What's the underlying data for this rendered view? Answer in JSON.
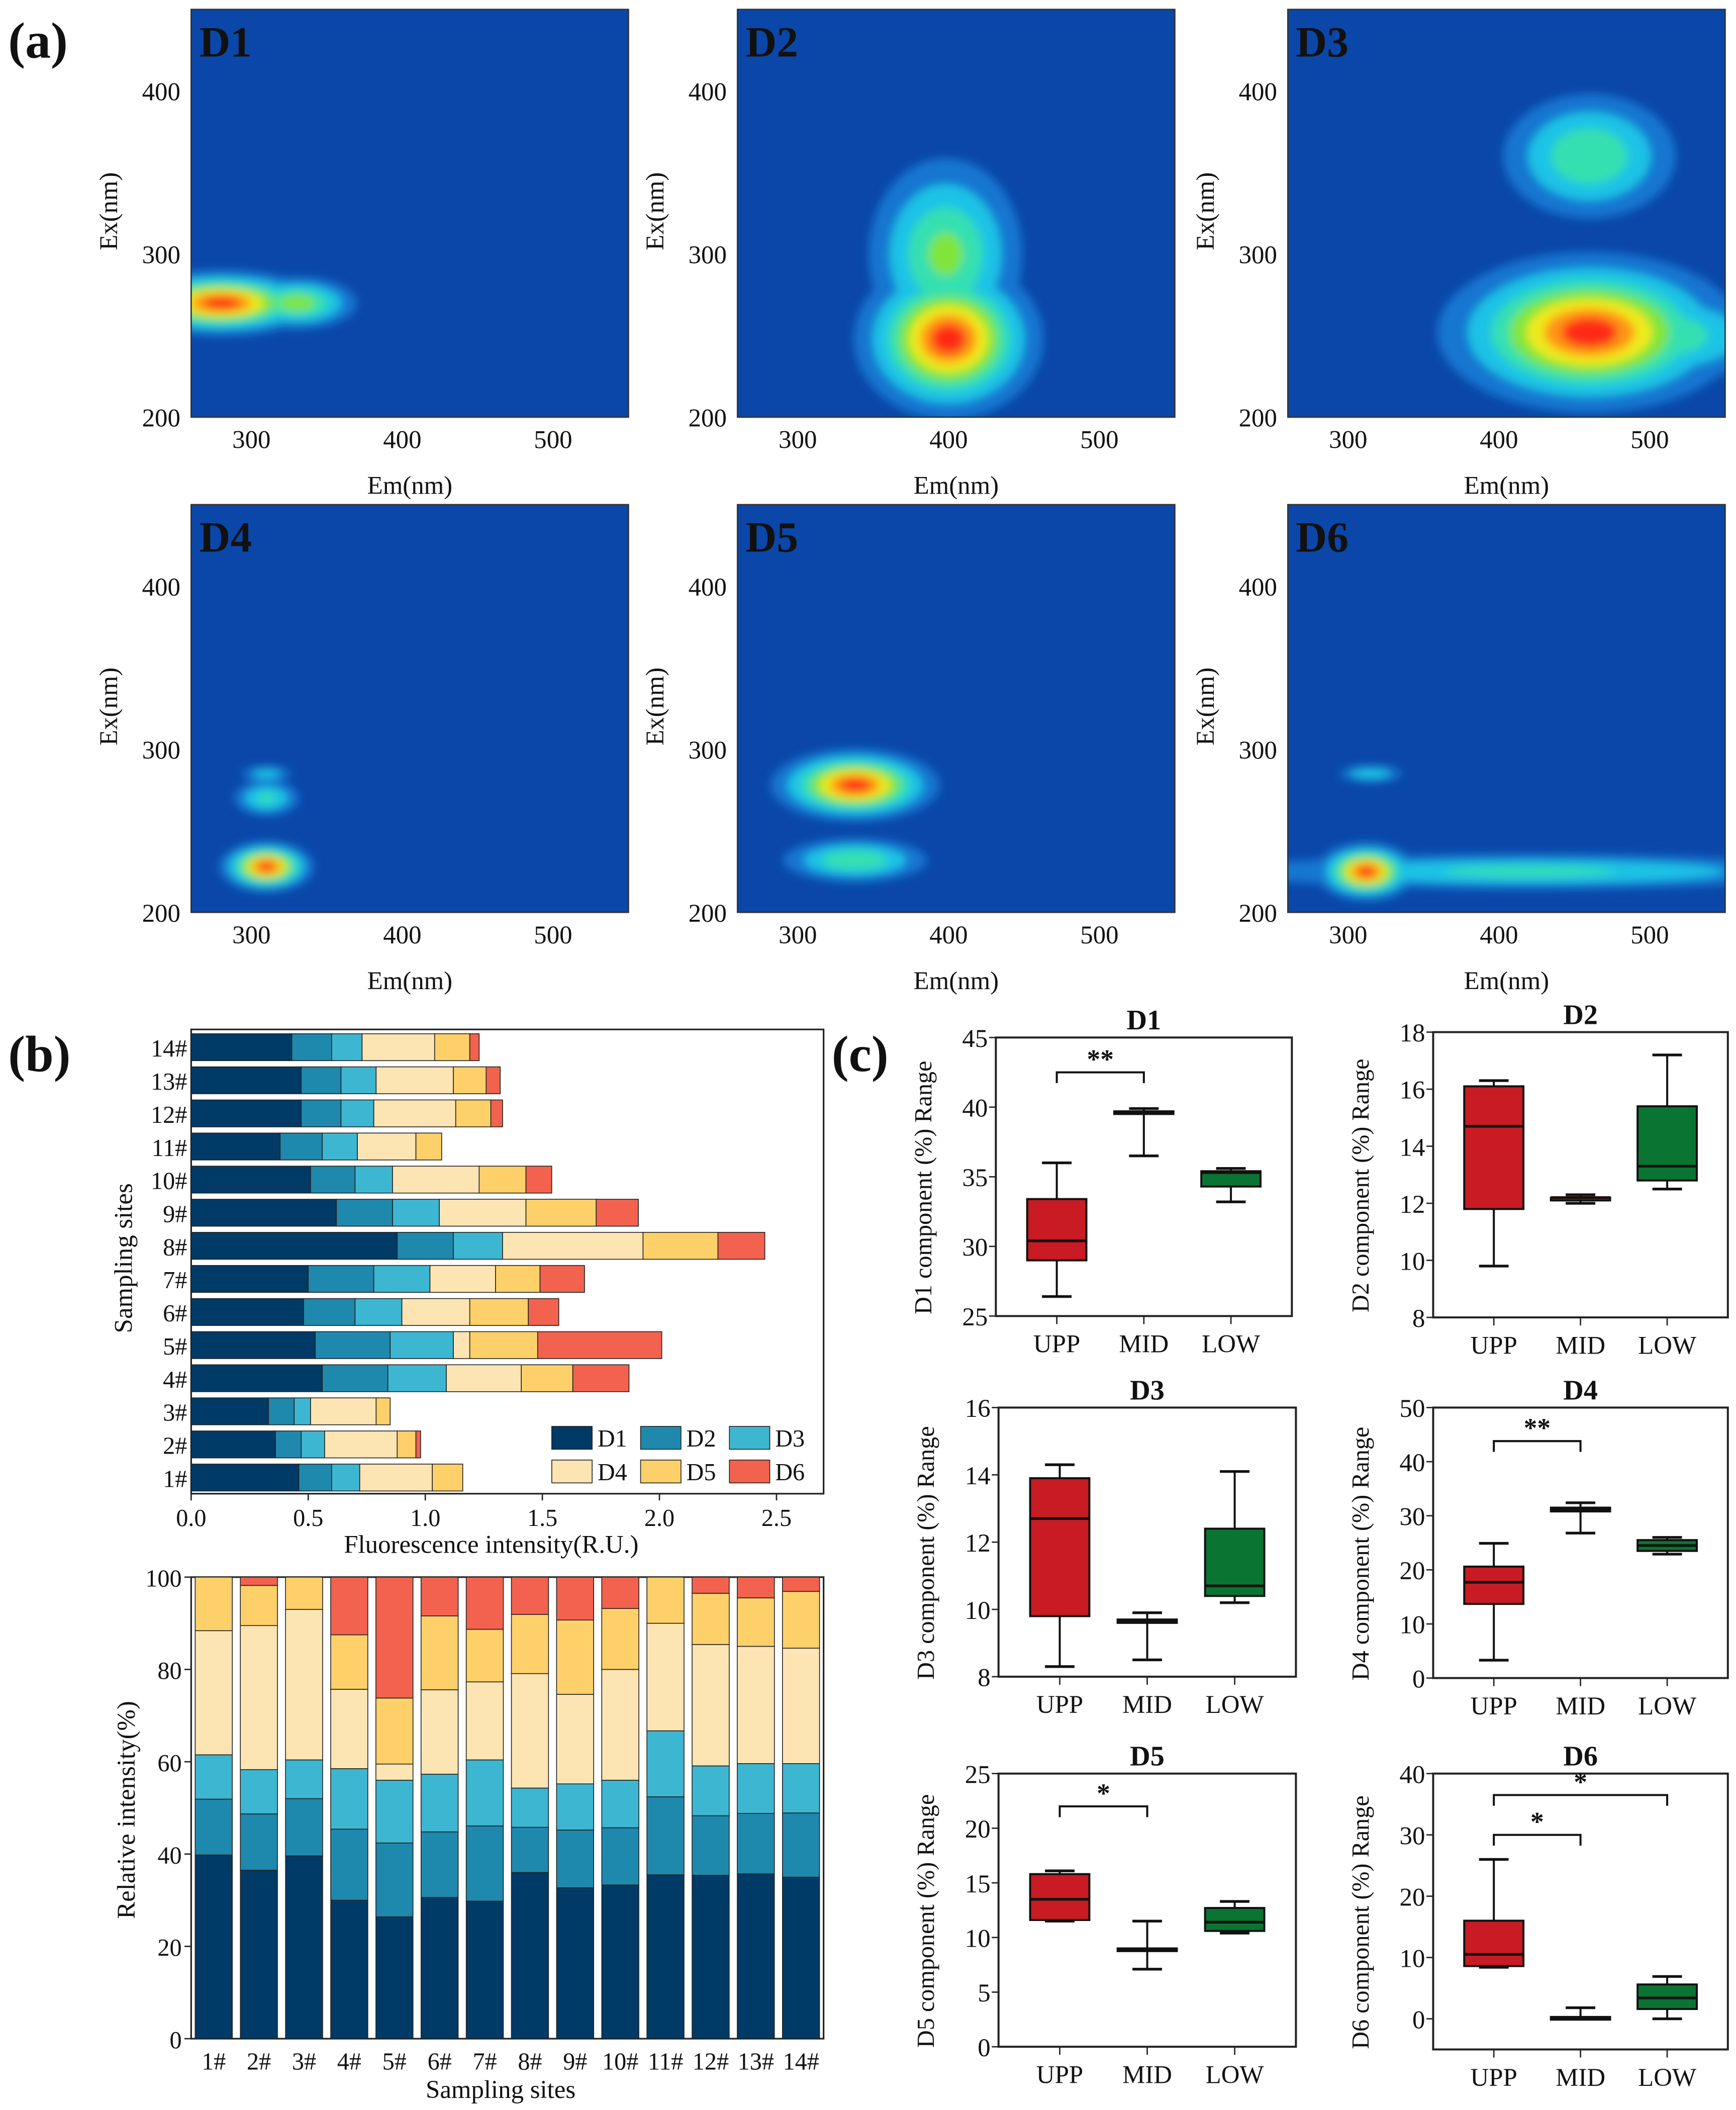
{
  "panel_labels": {
    "a": "(a)",
    "b": "(b)",
    "c": "(c)"
  },
  "colors": {
    "D1": "#003a66",
    "D2": "#1f88ad",
    "D3": "#3db6d1",
    "D4": "#fde4b3",
    "D5": "#fdd06a",
    "D6": "#f2624e",
    "box_upp": "#c81b24",
    "box_mid": "#c81b24",
    "box_low": "#0a7432",
    "eem_bg": "#0a47a8"
  },
  "chart_data": [
    {
      "type": "heatmap",
      "id": "eem",
      "xlabel": "Em(nm)",
      "ylabel": "Ex(nm)",
      "xlim": [
        260,
        550
      ],
      "ylim": [
        200,
        450
      ],
      "xticks": [
        "300",
        "400",
        "500"
      ],
      "yticks": [
        "200",
        "300",
        "400"
      ],
      "panels": [
        {
          "title": "D1",
          "peaks": [
            {
              "em": 280,
              "ex": 270,
              "sem": 30,
              "sex": 9,
              "amp": 1
            },
            {
              "em": 330,
              "ex": 270,
              "sem": 20,
              "sex": 8,
              "amp": 0.6
            }
          ]
        },
        {
          "title": "D2",
          "peaks": [
            {
              "em": 400,
              "ex": 248,
              "sem": 28,
              "sex": 22,
              "amp": 1
            },
            {
              "em": 398,
              "ex": 300,
              "sem": 26,
              "sex": 30,
              "amp": 0.55
            }
          ]
        },
        {
          "title": "D3",
          "peaks": [
            {
              "em": 460,
              "ex": 252,
              "sem": 45,
              "sex": 22,
              "amp": 1
            },
            {
              "em": 460,
              "ex": 360,
              "sem": 30,
              "sex": 20,
              "amp": 0.5
            },
            {
              "em": 505,
              "ex": 250,
              "sem": 40,
              "sex": 15,
              "amp": 0.5
            }
          ]
        },
        {
          "title": "D4",
          "peaks": [
            {
              "em": 310,
              "ex": 228,
              "sem": 14,
              "sex": 7,
              "amp": 1
            },
            {
              "em": 310,
              "ex": 270,
              "sem": 12,
              "sex": 6,
              "amp": 0.4
            },
            {
              "em": 310,
              "ex": 285,
              "sem": 10,
              "sex": 3,
              "amp": 0.3
            }
          ]
        },
        {
          "title": "D5",
          "peaks": [
            {
              "em": 338,
              "ex": 278,
              "sem": 25,
              "sex": 10,
              "amp": 1
            },
            {
              "em": 338,
              "ex": 232,
              "sem": 25,
              "sex": 7,
              "amp": 0.5
            }
          ]
        },
        {
          "title": "D6",
          "peaks": [
            {
              "em": 312,
              "ex": 225,
              "sem": 15,
              "sex": 8,
              "amp": 1
            },
            {
              "em": 420,
              "ex": 225,
              "sem": 110,
              "sex": 6,
              "amp": 0.4
            },
            {
              "em": 315,
              "ex": 285,
              "sem": 12,
              "sex": 3,
              "amp": 0.35
            }
          ]
        }
      ]
    },
    {
      "type": "bar",
      "id": "absolute",
      "orientation": "horizontal",
      "stacked": true,
      "xlabel": "Fluorescence intensity(R.U.)",
      "ylabel": "Sampling sites",
      "xlim": [
        0,
        2.7
      ],
      "xticks": [
        "0.0",
        "0.5",
        "1.0",
        "1.5",
        "2.0",
        "2.5"
      ],
      "legend": "bottom-right",
      "categories": [
        "1#",
        "2#",
        "3#",
        "4#",
        "5#",
        "6#",
        "7#",
        "8#",
        "9#",
        "10#",
        "11#",
        "12#",
        "13#",
        "14#"
      ],
      "series": [
        {
          "name": "D1",
          "values": [
            0.46,
            0.36,
            0.33,
            0.56,
            0.53,
            0.48,
            0.5,
            0.88,
            0.62,
            0.51,
            0.38,
            0.47,
            0.47,
            0.43
          ]
        },
        {
          "name": "D2",
          "values": [
            0.14,
            0.11,
            0.11,
            0.28,
            0.32,
            0.22,
            0.28,
            0.24,
            0.24,
            0.19,
            0.18,
            0.17,
            0.17,
            0.17
          ]
        },
        {
          "name": "D3",
          "values": [
            0.12,
            0.1,
            0.07,
            0.25,
            0.27,
            0.2,
            0.24,
            0.21,
            0.2,
            0.16,
            0.15,
            0.14,
            0.15,
            0.13
          ]
        },
        {
          "name": "D4",
          "values": [
            0.31,
            0.31,
            0.28,
            0.32,
            0.07,
            0.29,
            0.28,
            0.6,
            0.37,
            0.37,
            0.25,
            0.35,
            0.33,
            0.31
          ]
        },
        {
          "name": "D5",
          "values": [
            0.13,
            0.08,
            0.06,
            0.22,
            0.29,
            0.25,
            0.19,
            0.32,
            0.3,
            0.2,
            0.11,
            0.15,
            0.14,
            0.15
          ]
        },
        {
          "name": "D6",
          "values": [
            0.0,
            0.02,
            0.0,
            0.24,
            0.53,
            0.13,
            0.19,
            0.2,
            0.18,
            0.11,
            0.0,
            0.05,
            0.06,
            0.04
          ]
        }
      ]
    },
    {
      "type": "bar",
      "id": "relative",
      "stacked": true,
      "xlabel": "Sampling sites",
      "ylabel": "Relative intensity(%)",
      "ylim": [
        0,
        100
      ],
      "yticks": [
        "0",
        "20",
        "40",
        "60",
        "80",
        "100"
      ],
      "categories": [
        "1#",
        "2#",
        "3#",
        "4#",
        "5#",
        "6#",
        "7#",
        "8#",
        "9#",
        "10#",
        "11#",
        "12#",
        "13#",
        "14#"
      ],
      "series": [
        {
          "name": "D1",
          "values": [
            39.8,
            36.5,
            39.6,
            30.0,
            26.4,
            30.6,
            29.8,
            36.0,
            32.7,
            33.3,
            35.5,
            35.4,
            35.7,
            35.0
          ]
        },
        {
          "name": "D2",
          "values": [
            12.1,
            12.2,
            12.4,
            15.4,
            16.0,
            14.2,
            16.3,
            9.8,
            12.5,
            12.4,
            16.9,
            12.9,
            13.1,
            13.9
          ]
        },
        {
          "name": "D3",
          "values": [
            9.6,
            9.6,
            8.4,
            13.1,
            13.6,
            12.5,
            14.3,
            8.5,
            10.0,
            10.3,
            14.3,
            10.8,
            10.8,
            10.7
          ]
        },
        {
          "name": "D4",
          "values": [
            26.9,
            31.2,
            32.6,
            17.2,
            3.5,
            18.3,
            16.9,
            24.8,
            19.4,
            24.0,
            23.3,
            26.3,
            25.4,
            25.0
          ]
        },
        {
          "name": "D5",
          "values": [
            11.6,
            8.7,
            7.0,
            11.8,
            14.3,
            16.0,
            11.4,
            12.8,
            16.1,
            13.2,
            10.0,
            11.1,
            10.5,
            12.3
          ]
        },
        {
          "name": "D6",
          "values": [
            0.0,
            1.8,
            0.0,
            12.5,
            26.2,
            8.4,
            11.3,
            8.1,
            9.3,
            6.8,
            0.0,
            3.5,
            4.5,
            3.1
          ]
        }
      ]
    },
    {
      "type": "box",
      "id": "regions",
      "categories": [
        "UPP",
        "MID",
        "LOW"
      ],
      "panels": [
        {
          "title": "D1",
          "ylabel": "D1 component (%) Range",
          "ylim": [
            25,
            45
          ],
          "yticks": [
            "25",
            "30",
            "35",
            "40",
            "45"
          ],
          "boxes": [
            [
              26.4,
              29.0,
              30.4,
              33.4,
              36.0
            ],
            [
              36.5,
              39.6,
              39.6,
              39.7,
              39.9
            ],
            [
              33.2,
              34.3,
              35.3,
              35.4,
              35.6
            ]
          ],
          "sig": [
            {
              "from": 0,
              "to": 1,
              "at": 42.5,
              "label": "**"
            }
          ]
        },
        {
          "title": "D2",
          "ylabel": "D2 component (%) Range",
          "ylim": [
            8,
            18
          ],
          "yticks": [
            "8",
            "10",
            "12",
            "14",
            "16",
            "18"
          ],
          "boxes": [
            [
              9.8,
              11.8,
              14.7,
              16.1,
              16.3
            ],
            [
              12.0,
              12.1,
              12.2,
              12.2,
              12.3
            ],
            [
              12.5,
              12.8,
              13.3,
              15.4,
              17.2
            ]
          ],
          "sig": []
        },
        {
          "title": "D3",
          "ylabel": "D3 component (%) Range",
          "ylim": [
            8,
            16
          ],
          "yticks": [
            "8",
            "10",
            "12",
            "14",
            "16"
          ],
          "boxes": [
            [
              8.3,
              9.8,
              12.7,
              13.9,
              14.3
            ],
            [
              8.5,
              9.6,
              9.65,
              9.7,
              9.9
            ],
            [
              10.2,
              10.4,
              10.7,
              12.4,
              14.1
            ]
          ],
          "sig": []
        },
        {
          "title": "D4",
          "ylabel": "D4 component (%) Range",
          "ylim": [
            0,
            50
          ],
          "yticks": [
            "0",
            "10",
            "20",
            "30",
            "40",
            "50"
          ],
          "boxes": [
            [
              3.3,
              13.7,
              17.7,
              20.6,
              24.9
            ],
            [
              26.8,
              30.8,
              31.2,
              31.5,
              32.4
            ],
            [
              22.9,
              23.5,
              24.5,
              25.5,
              26.0
            ]
          ],
          "sig": [
            {
              "from": 0,
              "to": 1,
              "at": 43.8,
              "label": "**"
            }
          ]
        },
        {
          "title": "D5",
          "ylabel": "D5 component (%) Range",
          "ylim": [
            0,
            25
          ],
          "yticks": [
            "0",
            "5",
            "10",
            "15",
            "20",
            "25"
          ],
          "boxes": [
            [
              11.5,
              11.6,
              13.5,
              15.8,
              16.1
            ],
            [
              7.1,
              8.8,
              8.9,
              9.0,
              11.5
            ],
            [
              10.4,
              10.6,
              11.4,
              12.7,
              13.3
            ]
          ],
          "sig": [
            {
              "from": 0,
              "to": 1,
              "at": 22.0,
              "label": "*"
            }
          ]
        },
        {
          "title": "D6",
          "ylabel": "D6 component (%) Range",
          "ylim": [
            -5,
            40
          ],
          "yticks": [
            "0",
            "10",
            "20",
            "30",
            "40"
          ],
          "boxes": [
            [
              8.4,
              8.6,
              10.5,
              16.0,
              26.0
            ],
            [
              0.0,
              0.1,
              0.2,
              0.3,
              1.8
            ],
            [
              0.0,
              1.6,
              3.4,
              5.6,
              6.9
            ]
          ],
          "sig": [
            {
              "from": 0,
              "to": 1,
              "at": 30.0,
              "label": "*"
            },
            {
              "from": 0,
              "to": 2,
              "at": 36.5,
              "label": "*"
            }
          ]
        }
      ]
    }
  ]
}
